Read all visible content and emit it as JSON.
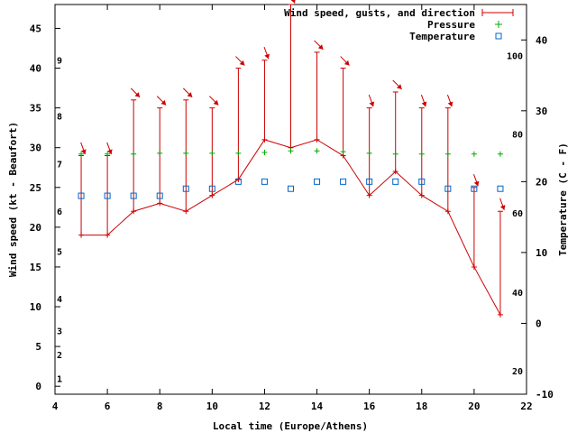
{
  "chart_data": {
    "type": "line",
    "xlabel": "Local time (Europe/Athens)",
    "ylabel": "Wind speed (kt - Beaufort)",
    "y2label": "Temperature (C - F)",
    "xlim": [
      4,
      22
    ],
    "ylim": [
      -1,
      48
    ],
    "y2lim": [
      -10,
      45
    ],
    "x_ticks": [
      4,
      6,
      8,
      10,
      12,
      14,
      16,
      18,
      20,
      22
    ],
    "y_ticks": [
      0,
      5,
      10,
      15,
      20,
      25,
      30,
      35,
      40,
      45
    ],
    "y2_ticks": [
      -10,
      0,
      10,
      20,
      30,
      40
    ],
    "beaufort_labels": [
      {
        "label": "1",
        "y": 1
      },
      {
        "label": "2",
        "y": 4
      },
      {
        "label": "3",
        "y": 7
      },
      {
        "label": "4",
        "y": 11
      },
      {
        "label": "5",
        "y": 17
      },
      {
        "label": "6",
        "y": 22
      },
      {
        "label": "7",
        "y": 28
      },
      {
        "label": "8",
        "y": 34
      },
      {
        "label": "9",
        "y": 41
      }
    ],
    "fahrenheit_labels": [
      {
        "label": "20",
        "y2": -6.7
      },
      {
        "label": "40",
        "y2": 4.4
      },
      {
        "label": "60",
        "y2": 15.6
      },
      {
        "label": "80",
        "y2": 26.7
      },
      {
        "label": "100",
        "y2": 37.8
      }
    ],
    "legend_position": "top-right",
    "series": [
      {
        "name": "Wind speed, gusts, and direction",
        "color": "#cc0000",
        "x": [
          5,
          6,
          7,
          8,
          9,
          10,
          11,
          12,
          13,
          14,
          15,
          16,
          17,
          18,
          19,
          20,
          21
        ],
        "speed": [
          19,
          19,
          22,
          23,
          22,
          24,
          26,
          31,
          30,
          31,
          29,
          24,
          27,
          24,
          22,
          15,
          9
        ],
        "gust": [
          29,
          29,
          36,
          35,
          36,
          35,
          40,
          41,
          48,
          42,
          40,
          35,
          37,
          35,
          35,
          25,
          22
        ],
        "direction_deg": [
          340,
          340,
          315,
          315,
          315,
          315,
          315,
          340,
          340,
          315,
          315,
          340,
          315,
          340,
          340,
          340,
          340
        ]
      },
      {
        "name": "Pressure",
        "color": "#00aa00",
        "marker": "plus",
        "x": [
          5,
          6,
          7,
          8,
          9,
          10,
          11,
          12,
          13,
          14,
          15,
          16,
          17,
          18,
          19,
          20,
          21
        ],
        "y": [
          29.2,
          29.2,
          29.2,
          29.3,
          29.3,
          29.3,
          29.3,
          29.4,
          29.6,
          29.6,
          29.5,
          29.3,
          29.2,
          29.2,
          29.2,
          29.2,
          29.2
        ]
      },
      {
        "name": "Temperature",
        "color": "#0066cc",
        "marker": "square",
        "axis": "y2",
        "x": [
          5,
          6,
          7,
          8,
          9,
          10,
          11,
          12,
          13,
          14,
          15,
          16,
          17,
          18,
          19,
          20,
          21
        ],
        "y": [
          18,
          18,
          18,
          18,
          19,
          19,
          20,
          20,
          19,
          20,
          20,
          20,
          20,
          20,
          19,
          19,
          19
        ]
      }
    ]
  }
}
